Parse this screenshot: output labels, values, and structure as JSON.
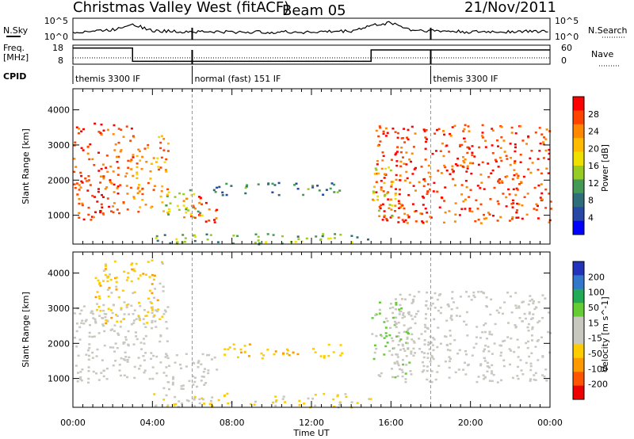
{
  "header": {
    "station": "Christmas Valley West (fitACF)",
    "beam": "Beam 05",
    "date": "21/Nov/2011"
  },
  "status_panels": {
    "nsky_label": "N.Sky",
    "nsearch_label": "N.Search",
    "freq_label_1": "Freq.",
    "freq_label_2": "[MHz]",
    "nave_label": "Nave",
    "cpid_label": "CPID",
    "noise_left_ticks": [
      "10^5",
      "10^0"
    ],
    "noise_right_ticks": [
      "10^5",
      "10^0"
    ],
    "freq_left_ticks": [
      "18",
      "8"
    ],
    "freq_right_ticks": [
      "60",
      "0"
    ],
    "cpid_segments": [
      {
        "start_hour": 0,
        "label": "themis 3300 IF"
      },
      {
        "start_hour": 6,
        "label": "normal (fast) 151 IF"
      },
      {
        "start_hour": 18,
        "label": "themis 3300 IF"
      }
    ]
  },
  "power_panel": {
    "ylabel": "Slant Range [km]",
    "colorbar_label": "Power [dB]",
    "colorbar_ticks": [
      "28",
      "24",
      "20",
      "16",
      "12",
      "8",
      "4"
    ],
    "colorbar_colors": [
      "#ff0000",
      "#ff4400",
      "#ff8800",
      "#ffbb00",
      "#f0e000",
      "#99cc22",
      "#449955",
      "#2d6e7a",
      "#2848a8",
      "#0000ff"
    ]
  },
  "velocity_panel": {
    "ylabel": "Slant Range [km]",
    "colorbar_label": "Velocity [m s^-1]",
    "colorbar_ticks": [
      "200",
      "100",
      "50",
      "15",
      "-15",
      "-50",
      "-100",
      "-200"
    ],
    "colorbar_colors": [
      "#2233bb",
      "#3377cc",
      "#22aa55",
      "#66cc33",
      "#c8c8c0",
      "#c8c8c0",
      "#ffcc00",
      "#ff9900",
      "#ff5500",
      "#ee0000"
    ]
  },
  "xaxis": {
    "label": "Time UT",
    "ticks": [
      "00:00",
      "04:00",
      "08:00",
      "12:00",
      "16:00",
      "20:00",
      "00:00"
    ]
  },
  "chart_data": {
    "type": "heatmap",
    "title": "Christmas Valley West (fitACF)",
    "x_unit": "hours UT",
    "xlim": [
      0,
      24
    ],
    "ylim": [
      180,
      4600
    ],
    "yticks": [
      1000,
      2000,
      3000,
      4000
    ],
    "panels": [
      {
        "name": "power",
        "ylabel": "Slant Range [km]",
        "zlabel": "Power [dB]",
        "zlim": [
          0,
          30
        ],
        "regions": [
          {
            "t0": 0.0,
            "t1": 3.0,
            "r0": 900,
            "r1": 3700,
            "level": 26
          },
          {
            "t0": 3.0,
            "t1": 4.8,
            "r0": 1100,
            "r1": 3300,
            "level": 22
          },
          {
            "t0": 4.5,
            "t1": 6.5,
            "r0": 950,
            "r1": 1800,
            "level": 14
          },
          {
            "t0": 5.5,
            "t1": 7.2,
            "r0": 800,
            "r1": 1600,
            "level": 26
          },
          {
            "t0": 7.0,
            "t1": 13.5,
            "r0": 1600,
            "r1": 1950,
            "level": 8
          },
          {
            "t0": 4.0,
            "t1": 15.0,
            "r0": 200,
            "r1": 500,
            "level": 12
          },
          {
            "t0": 15.2,
            "t1": 24.0,
            "r0": 800,
            "r1": 3600,
            "level": 26
          },
          {
            "t0": 15.0,
            "t1": 16.2,
            "r0": 900,
            "r1": 2500,
            "level": 18
          }
        ]
      },
      {
        "name": "velocity",
        "ylabel": "Slant Range [km]",
        "zlabel": "Velocity [m s^-1]",
        "zlim": [
          -200,
          200
        ],
        "regions": [
          {
            "t0": 0.0,
            "t1": 4.8,
            "r0": 900,
            "r1": 3200,
            "level": 0
          },
          {
            "t0": 1.0,
            "t1": 4.5,
            "r0": 2600,
            "r1": 4400,
            "level": -60
          },
          {
            "t0": 4.5,
            "t1": 7.2,
            "r0": 700,
            "r1": 1800,
            "level": 0
          },
          {
            "t0": 7.5,
            "t1": 13.5,
            "r0": 1600,
            "r1": 2000,
            "level": -70
          },
          {
            "t0": 4.0,
            "t1": 15.0,
            "r0": 200,
            "r1": 600,
            "level": -40
          },
          {
            "t0": 15.0,
            "t1": 17.0,
            "r0": 1000,
            "r1": 3200,
            "level": 40
          },
          {
            "t0": 16.0,
            "t1": 24.0,
            "r0": 900,
            "r1": 3500,
            "level": 0
          }
        ]
      }
    ],
    "noise_sky": [
      {
        "t": 0,
        "v": 0.35
      },
      {
        "t": 2,
        "v": 0.45
      },
      {
        "t": 3,
        "v": 0.75
      },
      {
        "t": 4,
        "v": 0.4
      },
      {
        "t": 8,
        "v": 0.35
      },
      {
        "t": 12,
        "v": 0.35
      },
      {
        "t": 14,
        "v": 0.4
      },
      {
        "t": 15,
        "v": 0.65
      },
      {
        "t": 16,
        "v": 0.8
      },
      {
        "t": 17,
        "v": 0.45
      },
      {
        "t": 20,
        "v": 0.35
      },
      {
        "t": 24,
        "v": 0.4
      }
    ],
    "frequency_mhz": [
      {
        "t0": 0,
        "t1": 3,
        "v": 16.5
      },
      {
        "t0": 3,
        "t1": 15,
        "v": 9.5
      },
      {
        "t0": 15,
        "t1": 24,
        "v": 15.5
      }
    ],
    "mode_changes_hours": [
      6,
      18
    ]
  }
}
